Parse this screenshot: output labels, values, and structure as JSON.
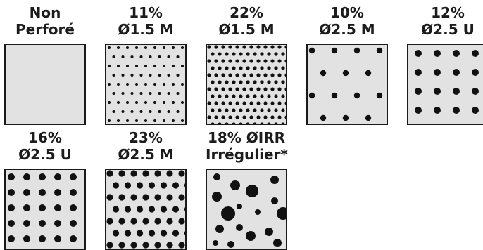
{
  "panels": [
    {
      "line1": "Non",
      "line2": "Perforé",
      "pattern": "none"
    },
    {
      "line1": "11%",
      "line2": "Ø1.5 M",
      "pattern": "small-dense"
    },
    {
      "line1": "22%",
      "line2": "Ø1.5 M",
      "pattern": "small-denser"
    },
    {
      "line1": "10%",
      "line2": "Ø2.5 M",
      "pattern": "medium-sparse-staggered"
    },
    {
      "line1": "12%",
      "line2": "Ø2.5 U",
      "pattern": "medium-grid"
    },
    {
      "line1": "16%",
      "line2": "Ø2.5 U",
      "pattern": "medium-grid-denser"
    },
    {
      "line1": "23%",
      "line2": "Ø2.5 M",
      "pattern": "medium-staggered-dense"
    },
    {
      "line1": "18% ØIRR",
      "line2": "Irrégulier*",
      "pattern": "irregular-large"
    }
  ],
  "colors": {
    "sheet": "#e2e2e2",
    "hole": "#111111",
    "border": "#1a1a1a"
  }
}
